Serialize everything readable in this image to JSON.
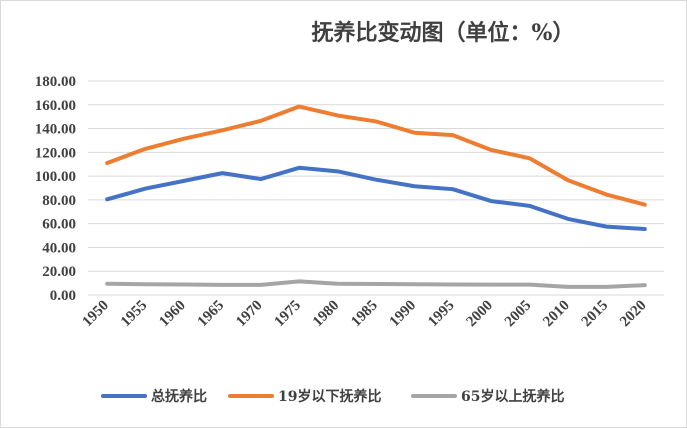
{
  "chart_data": {
    "type": "line",
    "title": "抚养比变动图（单位：%）",
    "x": [
      "1950",
      "1955",
      "1960",
      "1965",
      "1970",
      "1975",
      "1980",
      "1985",
      "1990",
      "1995",
      "2000",
      "2005",
      "2010",
      "2015",
      "2020"
    ],
    "ylim": [
      0,
      180
    ],
    "yticks": [
      "0.00",
      "20.00",
      "40.00",
      "60.00",
      "80.00",
      "100.00",
      "120.00",
      "140.00",
      "160.00",
      "180.00"
    ],
    "grid": true,
    "legend_position": "bottom",
    "series": [
      {
        "name": "总抚养比",
        "color": "#4472c4",
        "values": [
          80.5,
          89.5,
          96,
          102.5,
          97.5,
          107,
          104,
          97,
          91.5,
          89,
          79,
          75,
          64,
          57.5,
          55.5
        ]
      },
      {
        "name": "19岁以下抚养比",
        "color": "#ed7d31",
        "values": [
          111,
          123,
          131.5,
          138.5,
          146.5,
          158.5,
          151,
          146,
          136.5,
          134.5,
          122,
          115,
          96.5,
          84.5,
          76
        ]
      },
      {
        "name": "65岁以上抚养比",
        "color": "#a5a5a5",
        "values": [
          9.5,
          9,
          8.8,
          8.5,
          8.5,
          11.5,
          9.5,
          9.3,
          9,
          8.8,
          8.7,
          8.7,
          6.8,
          6.8,
          8.3
        ]
      }
    ]
  }
}
